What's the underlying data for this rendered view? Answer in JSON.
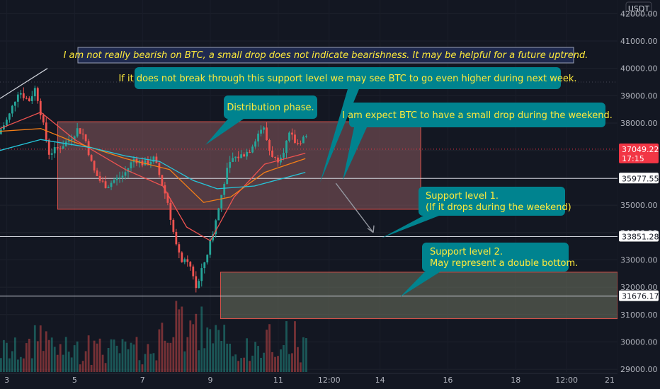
{
  "chart_data": {
    "type": "candlestick",
    "currency": "USDT",
    "y_ticks": [
      42000,
      41000,
      40000,
      39000,
      38000,
      37000,
      36000,
      35000,
      34000,
      33000,
      32000,
      31000,
      30000,
      29000
    ],
    "y_tick_labels": [
      "42000.00",
      "41000.00",
      "40000.00",
      "39000.00",
      "38000.00",
      "37000.00",
      "36000.00",
      "35000.00",
      "34000.00",
      "33000.00",
      "32000.00",
      "31000.00",
      "30000.00",
      "29000.00"
    ],
    "ylim": [
      28900,
      42500
    ],
    "x_day_range": [
      2.8,
      21.0
    ],
    "x_ticks": [
      {
        "day": 3,
        "label": "3"
      },
      {
        "day": 5,
        "label": "5"
      },
      {
        "day": 7,
        "label": "7"
      },
      {
        "day": 9,
        "label": "9"
      },
      {
        "day": 11,
        "label": "11"
      },
      {
        "day": 12.5,
        "label": "12:00"
      },
      {
        "day": 14,
        "label": "14"
      },
      {
        "day": 16,
        "label": "16"
      },
      {
        "day": 18,
        "label": "18"
      },
      {
        "day": 19.5,
        "label": "12:00"
      },
      {
        "day": 21,
        "label": "21"
      }
    ],
    "price_path": [
      [
        2.8,
        37600
      ],
      [
        3.1,
        38200
      ],
      [
        3.4,
        39200
      ],
      [
        3.7,
        38800
      ],
      [
        3.9,
        39300
      ],
      [
        4.05,
        38400
      ],
      [
        4.3,
        36900
      ],
      [
        4.6,
        37100
      ],
      [
        4.9,
        37400
      ],
      [
        5.15,
        37800
      ],
      [
        5.35,
        37500
      ],
      [
        5.6,
        36300
      ],
      [
        5.8,
        35900
      ],
      [
        6.0,
        35700
      ],
      [
        6.2,
        35900
      ],
      [
        6.5,
        36100
      ],
      [
        6.8,
        36700
      ],
      [
        7.1,
        36500
      ],
      [
        7.4,
        36700
      ],
      [
        7.6,
        35900
      ],
      [
        7.8,
        35100
      ],
      [
        7.95,
        34100
      ],
      [
        8.1,
        33200
      ],
      [
        8.3,
        32900
      ],
      [
        8.5,
        32700
      ],
      [
        8.65,
        31900
      ],
      [
        8.8,
        32600
      ],
      [
        9.0,
        33400
      ],
      [
        9.25,
        34600
      ],
      [
        9.5,
        36100
      ],
      [
        9.7,
        36700
      ],
      [
        9.95,
        36800
      ],
      [
        10.2,
        37000
      ],
      [
        10.45,
        37600
      ],
      [
        10.6,
        37900
      ],
      [
        10.8,
        37000
      ],
      [
        11.0,
        36600
      ],
      [
        11.2,
        37000
      ],
      [
        11.4,
        37600
      ],
      [
        11.6,
        37200
      ],
      [
        11.8,
        37500
      ]
    ],
    "moving_averages": [
      {
        "color": "#ef5350",
        "points": [
          [
            2.8,
            37800
          ],
          [
            4.0,
            38400
          ],
          [
            5.0,
            37400
          ],
          [
            6.5,
            36300
          ],
          [
            7.6,
            35700
          ],
          [
            8.3,
            34200
          ],
          [
            9.0,
            33700
          ],
          [
            9.7,
            35300
          ],
          [
            10.6,
            36500
          ],
          [
            11.8,
            36900
          ]
        ]
      },
      {
        "color": "#f57f17",
        "points": [
          [
            2.8,
            37700
          ],
          [
            4.0,
            37800
          ],
          [
            5.0,
            37300
          ],
          [
            6.5,
            36700
          ],
          [
            7.8,
            36300
          ],
          [
            8.8,
            35100
          ],
          [
            9.6,
            35300
          ],
          [
            10.6,
            36200
          ],
          [
            11.8,
            36700
          ]
        ]
      },
      {
        "color": "#26c6da",
        "points": [
          [
            2.8,
            37000
          ],
          [
            4.0,
            37400
          ],
          [
            5.5,
            37100
          ],
          [
            6.5,
            36800
          ],
          [
            7.5,
            36600
          ],
          [
            8.5,
            35900
          ],
          [
            9.2,
            35600
          ],
          [
            10.3,
            35700
          ],
          [
            11.8,
            36200
          ]
        ]
      }
    ],
    "price_tags": [
      {
        "value": 37049.22,
        "label": "37049.22",
        "sub": "17:15",
        "bg": "#f23645",
        "fg": "#ffffff"
      },
      {
        "value": 35977.55,
        "label": "35977.55",
        "bg": "#ffffff",
        "fg": "#131722"
      },
      {
        "value": 33851.28,
        "label": "33851.28",
        "bg": "#ffffff",
        "fg": "#131722"
      },
      {
        "value": 31676.17,
        "label": "31676.17",
        "bg": "#ffffff",
        "fg": "#131722"
      }
    ],
    "zones": [
      {
        "name": "distribution-zone",
        "x0": 4.5,
        "x1": 15.2,
        "y0": 34850,
        "y1": 38050,
        "fill": "#8a5a5e",
        "stroke": "#e0524a"
      },
      {
        "name": "support-zone-2",
        "x0": 9.3,
        "x1": 21.0,
        "y0": 30850,
        "y1": 32550,
        "fill": "#6f7461",
        "stroke": "#e0524a"
      }
    ],
    "annotations": {
      "headline": "I am not really bearish on BTC, a small drop does not indicate bearishness. It may be helpful for a future uptrend.",
      "notes": [
        {
          "name": "note-support-break",
          "text": "If it does not break through this support level we may see BTC to go even higher during next week."
        },
        {
          "name": "note-distribution",
          "text": "Distribution phase."
        },
        {
          "name": "note-weekend-drop",
          "text": "I am expect BTC to have a small drop during the weekend."
        },
        {
          "name": "note-support-1",
          "lines": [
            "Support level 1.",
            "(If it drops during the weekend)"
          ]
        },
        {
          "name": "note-support-2",
          "lines": [
            "Support level 2.",
            "May represent a double bottom."
          ]
        }
      ]
    },
    "colors": {
      "up": "#26a69a",
      "down": "#ef5350",
      "note_bg": "#00838f",
      "background": "#131722"
    }
  }
}
